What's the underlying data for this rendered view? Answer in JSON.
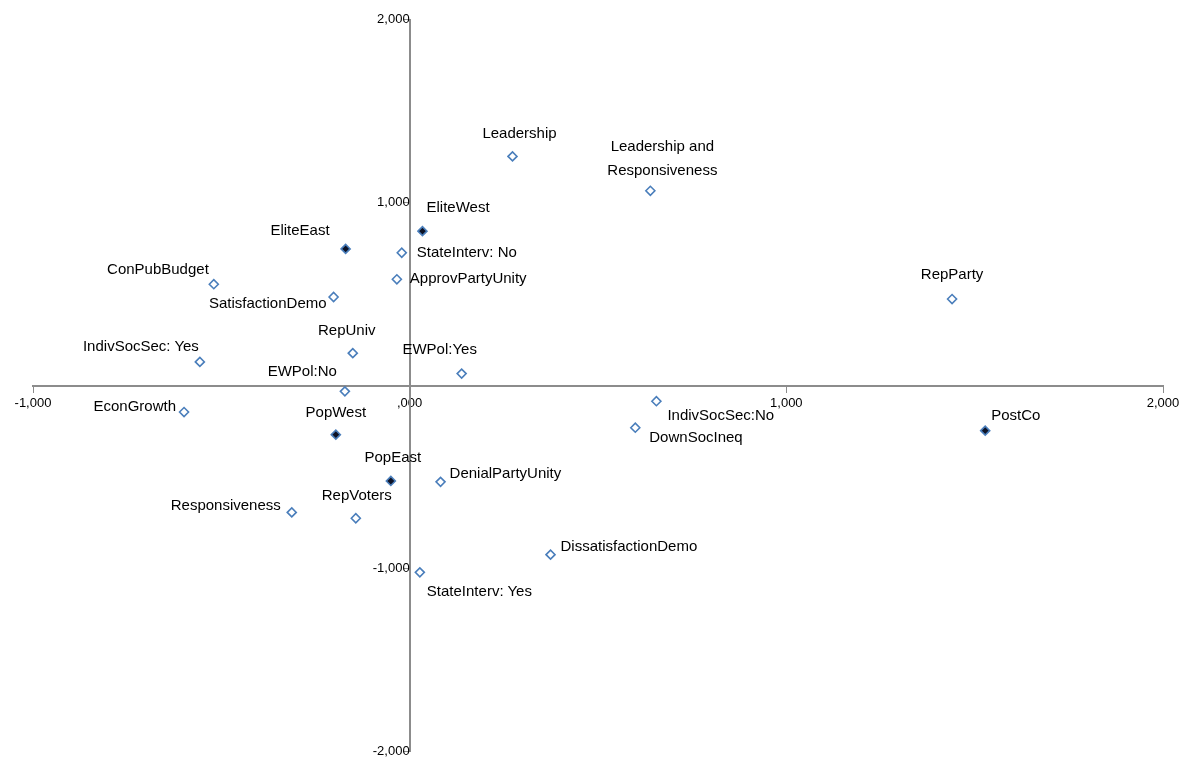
{
  "chart_data": {
    "type": "scatter",
    "marker": "diamond",
    "grid": false,
    "legend": false,
    "xlim": [
      -1000,
      2000
    ],
    "ylim": [
      -2000,
      2000
    ],
    "xticks": [
      {
        "value": -1000,
        "label": "-1,000"
      },
      {
        "value": 0,
        "label": ",000"
      },
      {
        "value": 1000,
        "label": "1,000"
      },
      {
        "value": 2000,
        "label": "2,000"
      }
    ],
    "yticks": [
      {
        "value": -2000,
        "label": "-2,000"
      },
      {
        "value": -1000,
        "label": "-1,000"
      },
      {
        "value": 0,
        "label": null
      },
      {
        "value": 1000,
        "label": "1,000"
      },
      {
        "value": 2000,
        "label": "2,000"
      }
    ],
    "series": [
      {
        "color": "#4a7ebb",
        "x": [
          273,
          639,
          -21,
          -34,
          -520,
          -202,
          1440,
          -151,
          -557,
          138,
          -172,
          -599,
          655,
          599,
          82,
          -313,
          -143,
          374,
          27
        ],
        "values": [
          1253,
          1065,
          726,
          581,
          554,
          484,
          473,
          177,
          129,
          65,
          -32,
          -145,
          -86,
          -231,
          -527,
          -694,
          -726,
          -925,
          -1022
        ]
      },
      {
        "color": "#0d1326",
        "x": [
          34,
          -170,
          1528,
          -196,
          -50
        ],
        "values": [
          844,
          747,
          -247,
          -269,
          -522
        ]
      }
    ],
    "annotations": [
      {
        "text": "Leadership",
        "x": 273,
        "y": 1253
      },
      {
        "text": "Leadership and Responsiveness",
        "x": 639,
        "y": 1065
      },
      {
        "text": "StateInterv: No",
        "x": -21,
        "y": 726
      },
      {
        "text": "ApprovPartyUnity",
        "x": -34,
        "y": 581
      },
      {
        "text": "ConPubBudget",
        "x": -520,
        "y": 554
      },
      {
        "text": "SatisfactionDemo",
        "x": -202,
        "y": 484
      },
      {
        "text": "RepParty",
        "x": 1440,
        "y": 473
      },
      {
        "text": "RepUniv",
        "x": -151,
        "y": 177
      },
      {
        "text": "IndivSocSec: Yes",
        "x": -557,
        "y": 129
      },
      {
        "text": "EWPol:Yes",
        "x": 138,
        "y": 65
      },
      {
        "text": "EWPol:No",
        "x": -172,
        "y": -32
      },
      {
        "text": "EconGrowth",
        "x": -599,
        "y": -145
      },
      {
        "text": "IndivSocSec:No",
        "x": 655,
        "y": -86
      },
      {
        "text": "DownSocIneq",
        "x": 599,
        "y": -231
      },
      {
        "text": "DenialPartyUnity",
        "x": 82,
        "y": -527
      },
      {
        "text": "Responsiveness",
        "x": -313,
        "y": -694
      },
      {
        "text": "RepVoters",
        "x": -143,
        "y": -726
      },
      {
        "text": "DissatisfactionDemo",
        "x": 374,
        "y": -925
      },
      {
        "text": "StateInterv: Yes",
        "x": 27,
        "y": -1022
      },
      {
        "text": "EliteWest",
        "x": 34,
        "y": 844
      },
      {
        "text": "EliteEast",
        "x": -170,
        "y": 747
      },
      {
        "text": "PostCo",
        "x": 1528,
        "y": -247
      },
      {
        "text": "PopWest",
        "x": -196,
        "y": -269
      },
      {
        "text": "PopEast",
        "x": -50,
        "y": -522
      }
    ]
  }
}
